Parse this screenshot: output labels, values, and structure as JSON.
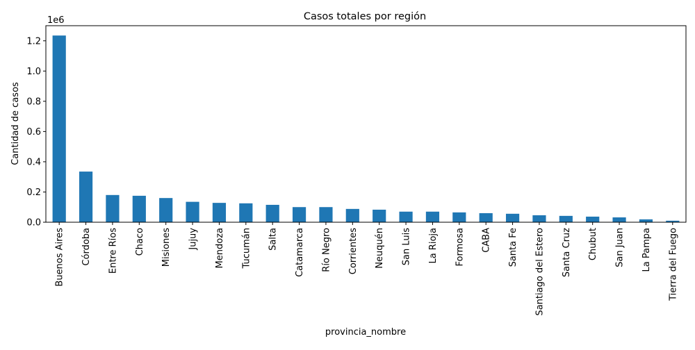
{
  "chart_data": {
    "type": "bar",
    "title": "Casos totales por región",
    "xlabel": "provincia_nombre",
    "ylabel": "Cantidad de casos",
    "y_offset_label": "1e6",
    "ylim": [
      0,
      1300000
    ],
    "y_ticks": [
      0,
      200000,
      400000,
      600000,
      800000,
      1000000,
      1200000
    ],
    "y_tick_labels": [
      "0.0",
      "0.2",
      "0.4",
      "0.6",
      "0.8",
      "1.0",
      "1.2"
    ],
    "grid": false,
    "bar_color": "#1f77b4",
    "categories": [
      "Buenos Aires",
      "Córdoba",
      "Entre Ríos",
      "Chaco",
      "Misiones",
      "Jujuy",
      "Mendoza",
      "Tucumán",
      "Salta",
      "Catamarca",
      "Río Negro",
      "Corrientes",
      "Neuquén",
      "San Luis",
      "La Rioja",
      "Formosa",
      "CABA",
      "Santa Fe",
      "Santiago del Estero",
      "Santa Cruz",
      "Chubut",
      "San Juan",
      "La Pampa",
      "Tierra del Fuego"
    ],
    "values": [
      1235000,
      335000,
      180000,
      175000,
      160000,
      135000,
      128000,
      125000,
      115000,
      100000,
      100000,
      88000,
      83000,
      70000,
      70000,
      65000,
      60000,
      56000,
      46000,
      42000,
      37000,
      32000,
      19000,
      10000
    ]
  }
}
